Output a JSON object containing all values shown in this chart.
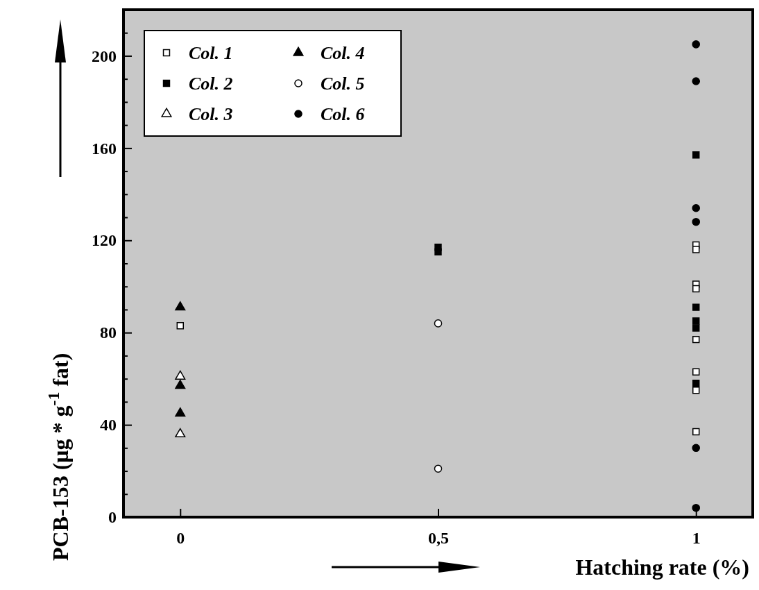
{
  "chart_data": {
    "type": "scatter",
    "xlabel": "Hatching rate (%)",
    "ylabel": "PCB-153 (μg * g$^{-1}$ fat)",
    "categories": [
      "0",
      "0,5",
      "1"
    ],
    "ylim": [
      0,
      220
    ],
    "yticks": [
      0,
      {
        "value": 10,
        "label": null
      },
      {
        "value": 20,
        "label": null
      },
      {
        "value": 30,
        "label": null
      },
      40,
      {
        "value": 50,
        "label": null
      },
      {
        "value": 60,
        "label": null
      },
      {
        "value": 70,
        "label": null
      },
      80,
      {
        "value": 90,
        "label": null
      },
      {
        "value": 100,
        "label": null
      },
      {
        "value": 110,
        "label": null
      },
      120,
      {
        "value": 130,
        "label": null
      },
      {
        "value": 140,
        "label": null
      },
      {
        "value": 150,
        "label": null
      },
      160,
      {
        "value": 170,
        "label": null
      },
      {
        "value": 180,
        "label": null
      },
      {
        "value": 190,
        "label": null
      },
      200,
      {
        "value": 210,
        "label": null
      }
    ],
    "grid": false,
    "legend": "top left",
    "series": [
      {
        "name": "Col. 1",
        "color": "#ffffff",
        "marker": "square",
        "x": [
          "0",
          "1",
          "1",
          "1",
          "1",
          "1",
          "1",
          "1",
          "1"
        ],
        "values": [
          83,
          118,
          116,
          101,
          99,
          77,
          63,
          55,
          37
        ]
      },
      {
        "name": "Col. 2",
        "color": "#000000",
        "marker": "square",
        "x": [
          "0,5",
          "0,5",
          "1",
          "1",
          "1",
          "1",
          "1"
        ],
        "values": [
          115,
          117,
          157,
          91,
          85,
          82,
          58
        ]
      },
      {
        "name": "Col. 3",
        "color": "#ffffff",
        "marker": "triangle",
        "x": [
          "0",
          "0"
        ],
        "values": [
          61,
          36
        ]
      },
      {
        "name": "Col. 4",
        "color": "#000000",
        "marker": "triangle",
        "x": [
          "0",
          "0",
          "0"
        ],
        "values": [
          91,
          57,
          45
        ]
      },
      {
        "name": "Col. 5",
        "color": "#ffffff",
        "marker": "circle",
        "x": [
          "0,5",
          "0,5"
        ],
        "values": [
          84,
          21
        ]
      },
      {
        "name": "Col. 6",
        "color": "#000000",
        "marker": "circle",
        "x": [
          "1",
          "1",
          "1",
          "1",
          "1",
          "1"
        ],
        "values": [
          205,
          189,
          134,
          128,
          30,
          4
        ]
      }
    ]
  }
}
